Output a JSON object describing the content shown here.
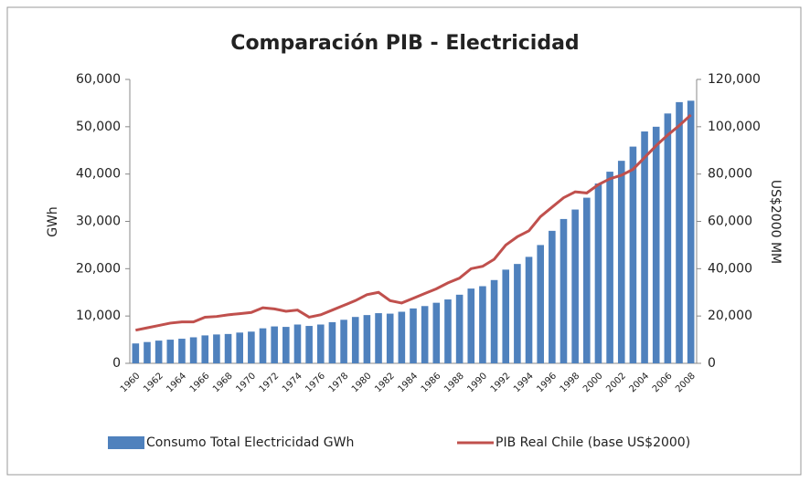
{
  "chart_data": {
    "type": "bar",
    "title": "Comparación PIB - Electricidad",
    "y_label": "GWh",
    "y2_label": "US$2000 MM",
    "categories": [
      "1960",
      null,
      "1962",
      null,
      "1964",
      null,
      "1966",
      null,
      "1968",
      null,
      "1970",
      null,
      "1972",
      null,
      "1974",
      null,
      "1976",
      null,
      "1978",
      null,
      "1980",
      null,
      "1982",
      null,
      "1984",
      null,
      "1986",
      null,
      "1988",
      null,
      "1990",
      null,
      "1992",
      null,
      "1994",
      null,
      "1996",
      null,
      "1998",
      null,
      "2000",
      null,
      "2002",
      null,
      "2004",
      null,
      "2006",
      null,
      "2008"
    ],
    "series": [
      {
        "name": "Consumo Total Electricidad GWh",
        "type": "bar",
        "color": "#4f81bd",
        "values": [
          4200,
          4500,
          4800,
          5000,
          5200,
          5500,
          5900,
          6100,
          6200,
          6500,
          6700,
          7400,
          7800,
          7700,
          8200,
          7900,
          8200,
          8700,
          9200,
          9800,
          10200,
          10600,
          10500,
          10900,
          11600,
          12100,
          12800,
          13500,
          14500,
          15800,
          16300,
          17600,
          19800,
          21000,
          22500,
          25000,
          28000,
          30500,
          32500,
          35000,
          38000,
          40500,
          42800,
          45800,
          49000,
          50000,
          52800,
          55200,
          55500
        ]
      },
      {
        "name": "PIB Real Chile (base US$2000)",
        "type": "line",
        "color": "#c0504d",
        "axis": "y2",
        "values": [
          14000,
          15000,
          16000,
          17000,
          17500,
          17500,
          19500,
          19800,
          20500,
          21000,
          21500,
          23500,
          23000,
          22000,
          22500,
          19500,
          20500,
          22500,
          24500,
          26500,
          29000,
          30000,
          26500,
          25500,
          27500,
          29500,
          31500,
          34000,
          36000,
          40000,
          41000,
          44000,
          50000,
          53500,
          56000,
          62000,
          66000,
          70000,
          72500,
          72000,
          75500,
          78000,
          79500,
          82000,
          87000,
          92000,
          96500,
          100500,
          105000
        ]
      }
    ],
    "ylim": [
      0,
      60000
    ],
    "yticks": [
      0,
      {
        "value": 10000,
        "label": "10,000"
      },
      {
        "value": 20000,
        "label": "20,000"
      },
      {
        "value": 30000,
        "label": "30,000"
      },
      {
        "value": 40000,
        "label": "40,000"
      },
      {
        "value": 50000,
        "label": "50,000"
      },
      {
        "value": 60000,
        "label": "60,000"
      }
    ],
    "y2lim": [
      0,
      120000
    ],
    "y2ticks": [
      0,
      {
        "value": 20000,
        "label": "20,000"
      },
      {
        "value": 40000,
        "label": "40,000"
      },
      {
        "value": 60000,
        "label": "60,000"
      },
      {
        "value": 80000,
        "label": "80,000"
      },
      {
        "value": 100000,
        "label": "100,000"
      },
      {
        "value": 120000,
        "label": "120,000"
      }
    ],
    "legend": "bottom"
  }
}
